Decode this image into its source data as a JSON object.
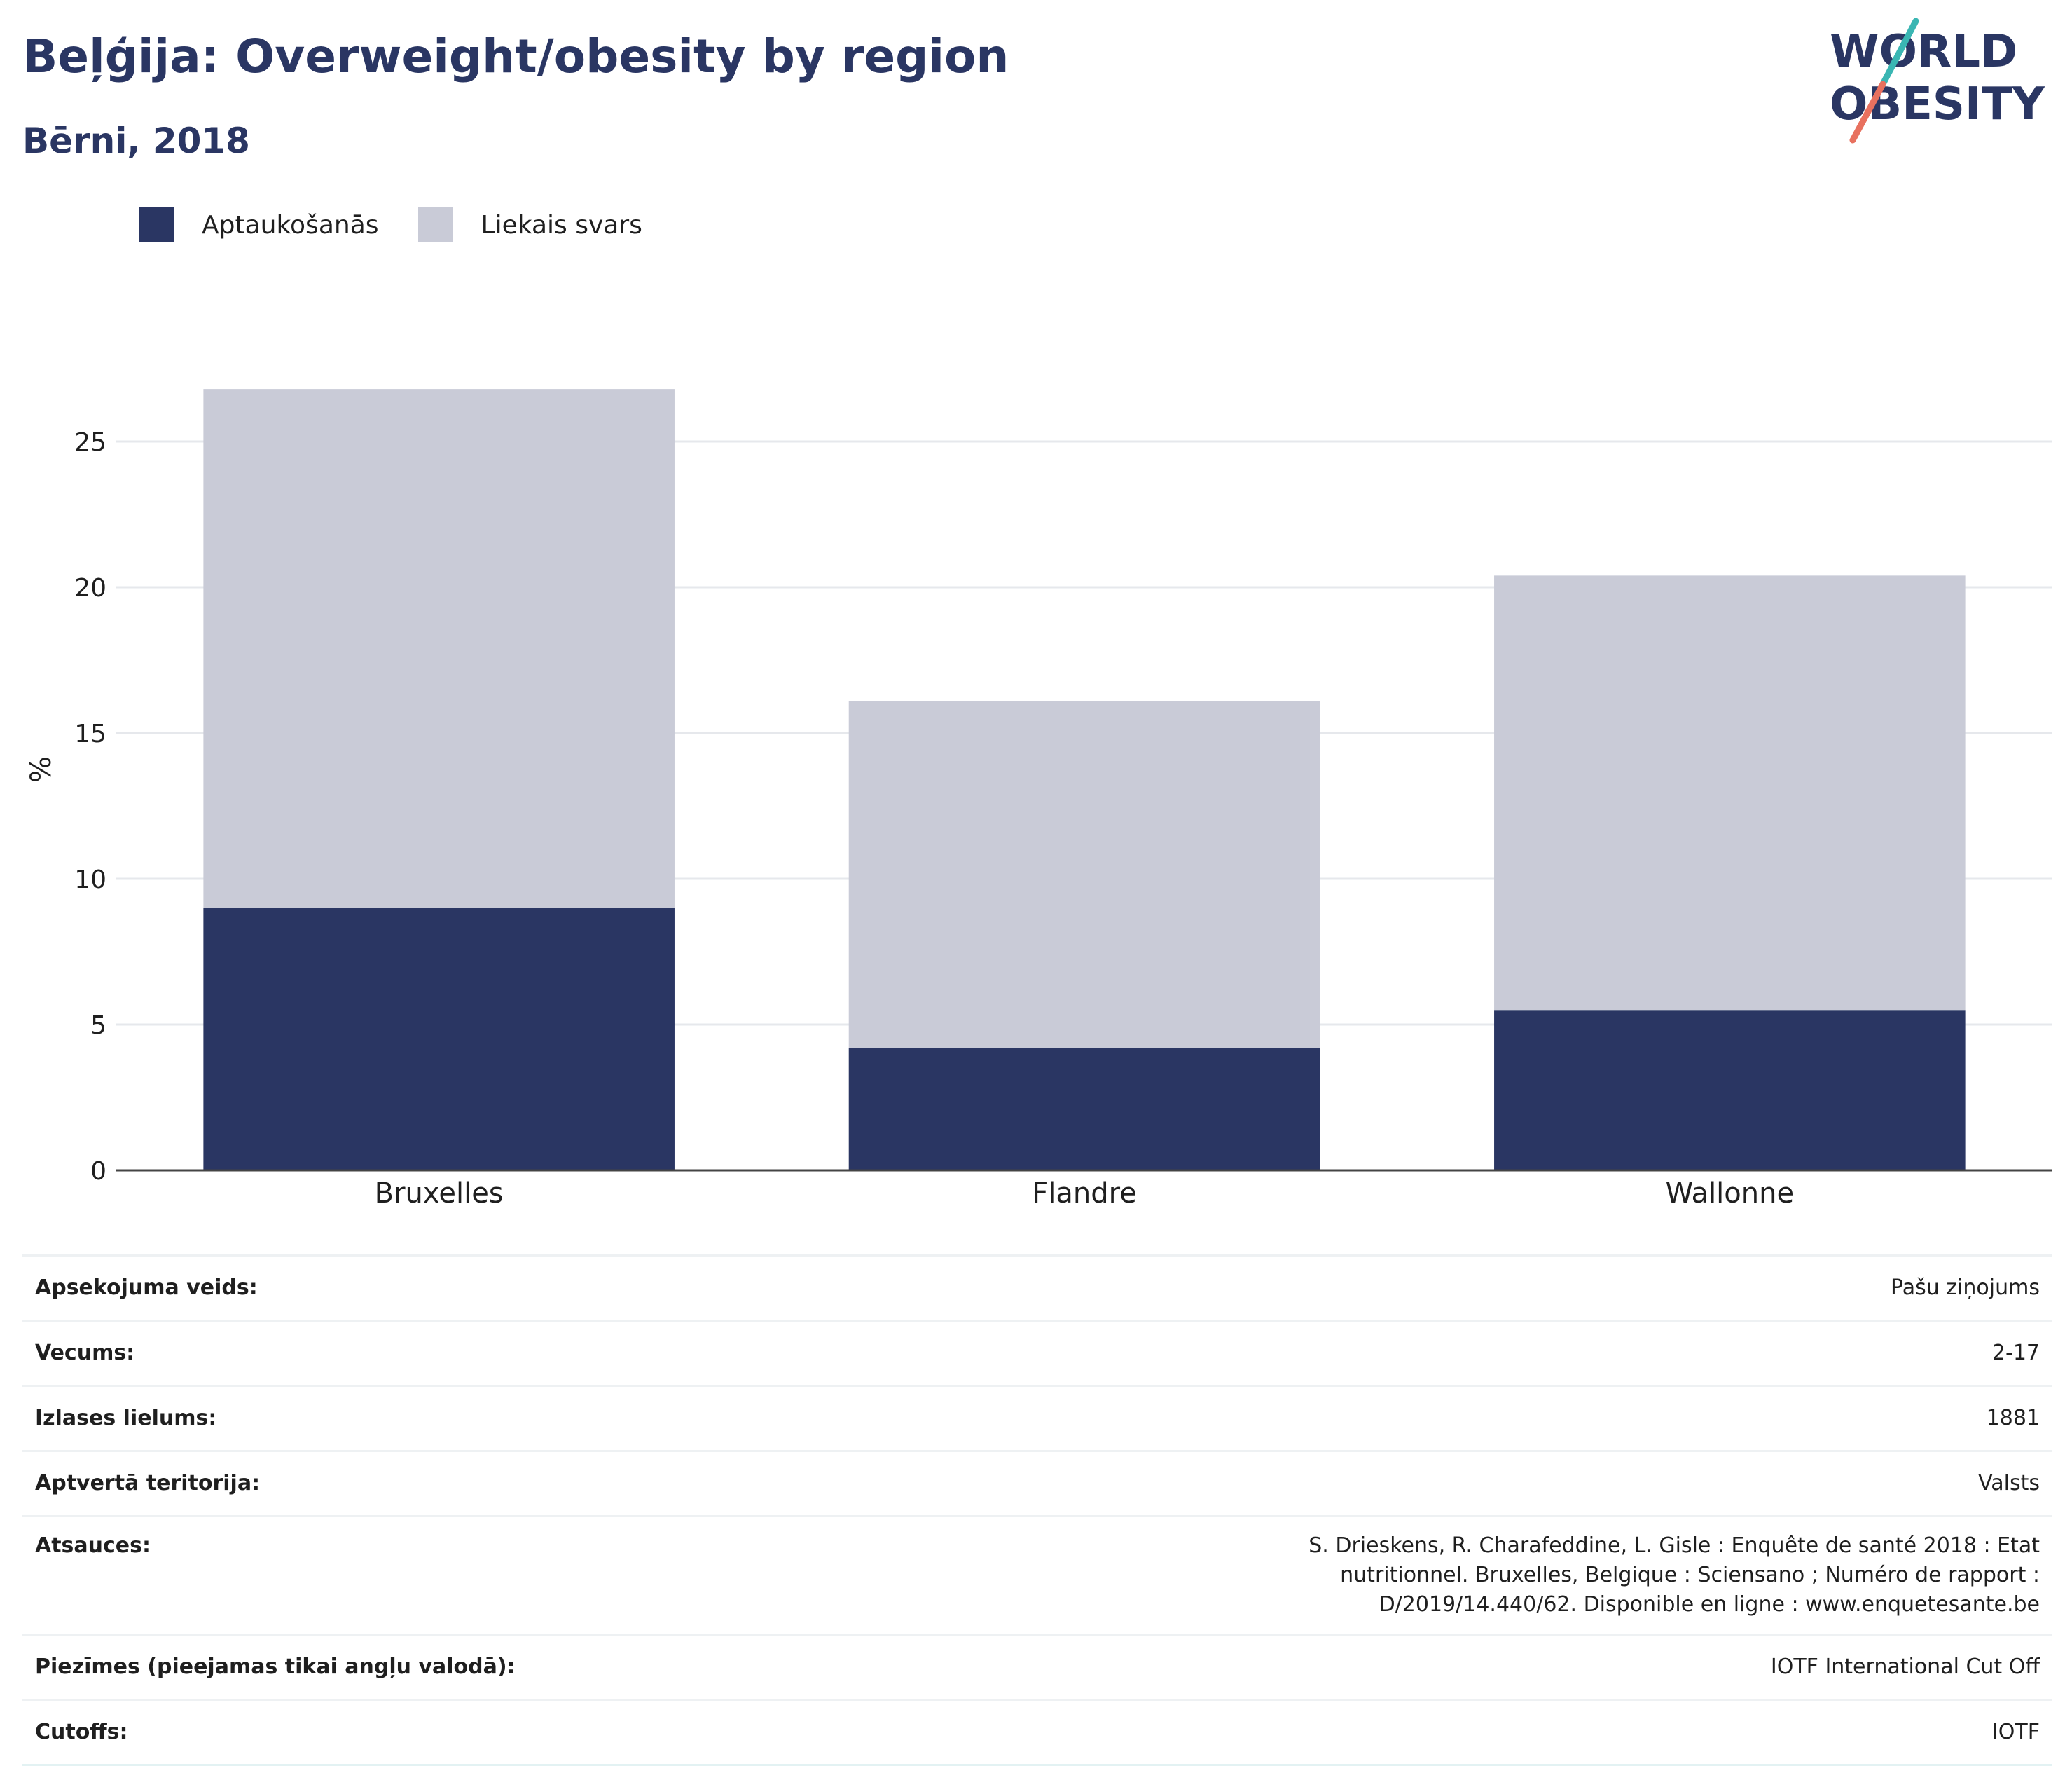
{
  "header": {
    "title": "Beļģija: Overweight/obesity by region",
    "subtitle": "Bērni, 2018"
  },
  "logo": {
    "line1": "WORLD",
    "line2": "OBESITY"
  },
  "colors": {
    "obesity": "#2a3663",
    "overweight": "#c9cbd7",
    "accent_teal": "#3ab6b3",
    "accent_coral": "#e8715f",
    "text": "#2a3663"
  },
  "legend": [
    {
      "label": "Aptaukošanās",
      "color": "#2a3663"
    },
    {
      "label": "Liekais svars",
      "color": "#c9cbd7"
    }
  ],
  "chart_data": {
    "type": "bar",
    "stacked": true,
    "categories": [
      "Bruxelles",
      "Flandre",
      "Wallonne"
    ],
    "series": [
      {
        "name": "Aptaukošanās",
        "values": [
          9.0,
          4.2,
          5.5
        ]
      },
      {
        "name": "Liekais svars",
        "values": [
          17.8,
          11.9,
          14.9
        ]
      }
    ],
    "ylabel": "%",
    "xlabel": "",
    "ylim": [
      0,
      27.5
    ],
    "yticks": [
      0,
      5,
      10,
      15,
      20,
      25
    ],
    "grid": true,
    "legend_position": "top-left"
  },
  "details": [
    {
      "key": "Apsekojuma veids:",
      "value": "Pašu ziņojums"
    },
    {
      "key": "Vecums:",
      "value": "2-17"
    },
    {
      "key": "Izlases lielums:",
      "value": "1881"
    },
    {
      "key": "Aptvertā teritorija:",
      "value": "Valsts"
    },
    {
      "key": "Atsauces:",
      "value": "S. Drieskens, R. Charafeddine, L. Gisle : Enquête de santé 2018 : Etat nutritionnel. Bruxelles, Belgique : Sciensano ; Numéro de rapport : D/2019/14.440/62. Disponible en ligne : www.enquetesante.be"
    },
    {
      "key": "Piezīmes (pieejamas tikai angļu valodā):",
      "value": "IOTF International Cut Off"
    },
    {
      "key": "Cutoffs:",
      "value": "IOTF"
    }
  ]
}
